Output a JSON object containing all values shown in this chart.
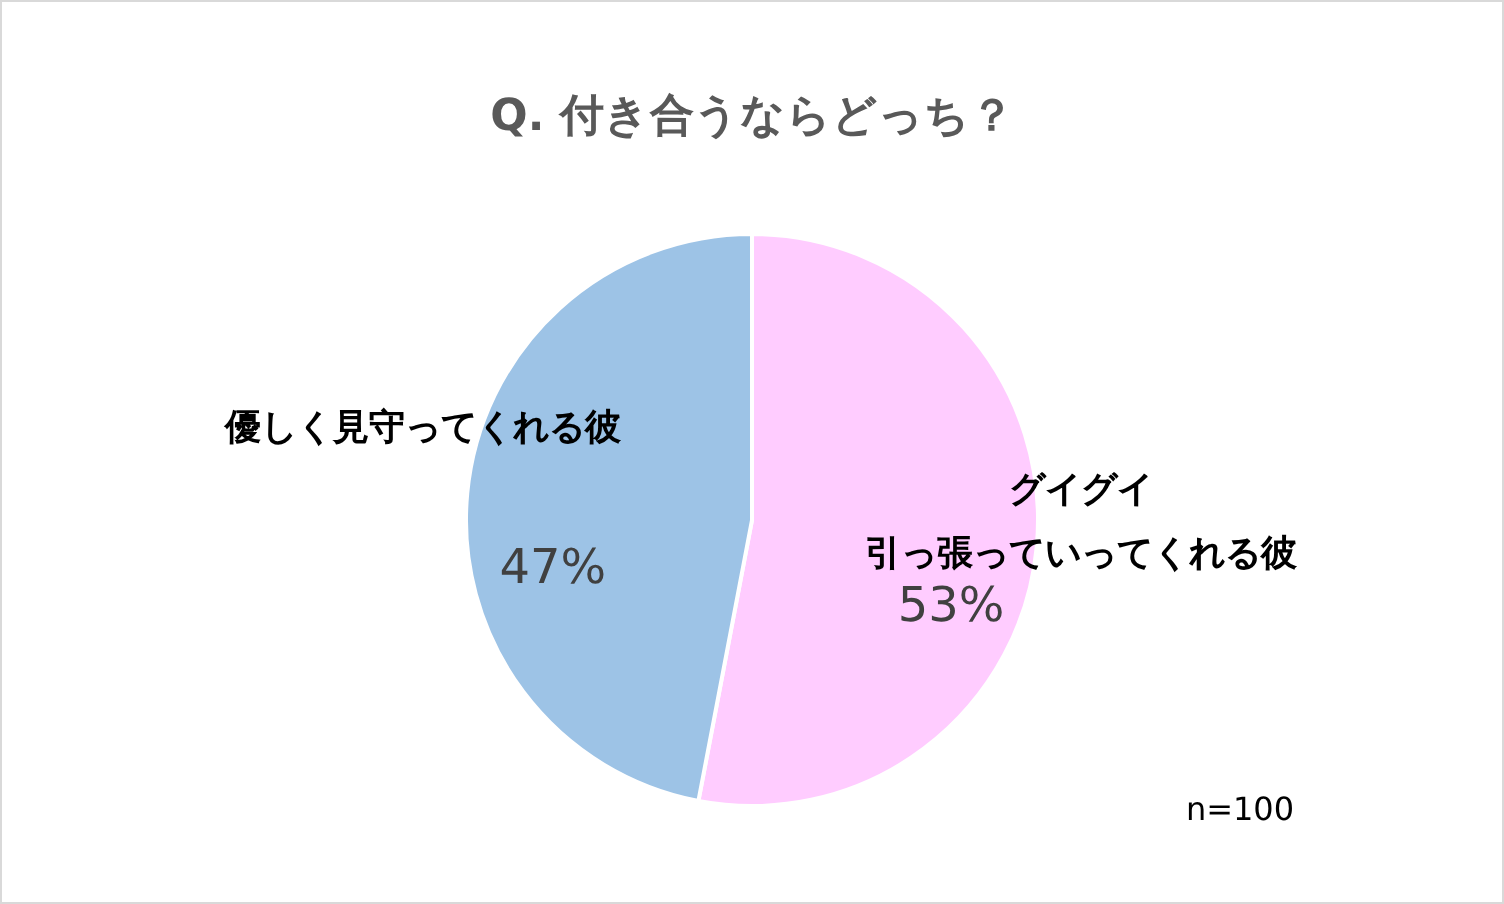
{
  "chart_data": {
    "type": "pie",
    "title": "Q.  付き合うならどっち？",
    "categories": [
      "グイグイ引っ張っていってくれる彼",
      "優しく見守ってくれる彼"
    ],
    "values": [
      53,
      47
    ],
    "colors": [
      "#ffccff",
      "#9dc3e6"
    ],
    "value_labels": [
      "53%",
      "47%"
    ],
    "annotations": [
      "n=100"
    ]
  }
}
